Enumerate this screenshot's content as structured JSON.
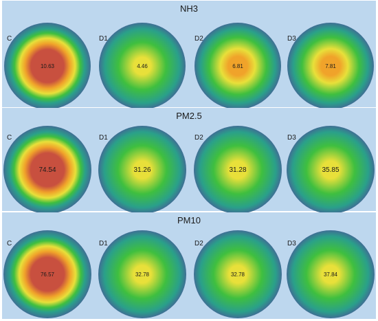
{
  "chart_data": [
    {
      "type": "heatmap",
      "title": "NH3",
      "series": [
        {
          "name": "C",
          "value": 10.63
        },
        {
          "name": "D1",
          "value": 4.46
        },
        {
          "name": "D2",
          "value": 6.81
        },
        {
          "name": "D3",
          "value": 7.81
        }
      ]
    },
    {
      "type": "heatmap",
      "title": "PM2.5",
      "series": [
        {
          "name": "C",
          "value": 74.54
        },
        {
          "name": "D1",
          "value": 31.26
        },
        {
          "name": "D2",
          "value": 31.28
        },
        {
          "name": "D3",
          "value": 35.85
        }
      ]
    },
    {
      "type": "heatmap",
      "title": "PM10",
      "series": [
        {
          "name": "C",
          "value": 76.57
        },
        {
          "name": "D1",
          "value": 32.78
        },
        {
          "name": "D2",
          "value": 32.78
        },
        {
          "name": "D3",
          "value": 37.84
        }
      ]
    }
  ],
  "colors": {
    "panel_background": "#bdd7ee",
    "ramp_edge": "#3f6f94",
    "ramp_teal": "#2aa08a",
    "ramp_green": "#3fbf3f",
    "ramp_yellow": "#e8e03a",
    "ramp_orange": "#f0a32a",
    "ramp_red": "#c8503f"
  }
}
